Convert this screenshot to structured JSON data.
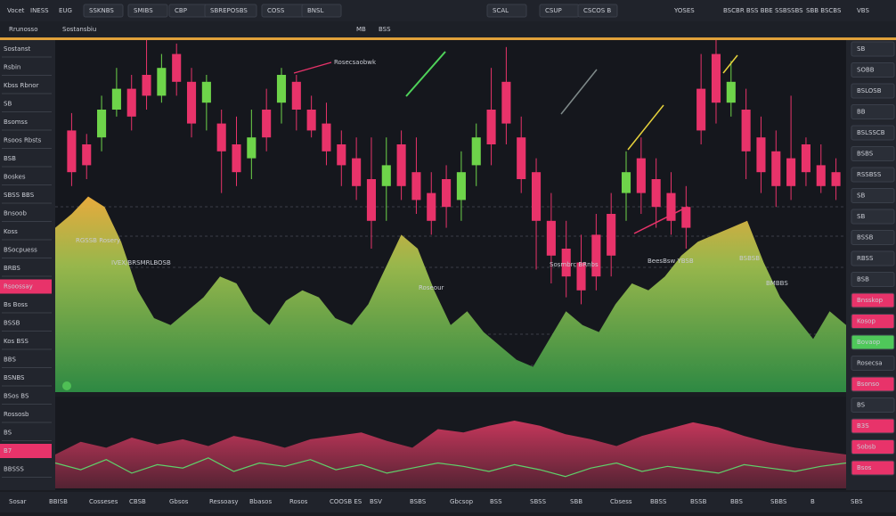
{
  "top_bar": {
    "items": [
      "Vocet",
      "INESS",
      "EUG",
      "SSKNBS",
      "SMIBS",
      "CBP",
      "SBREPOSBS",
      "COSS",
      "BNSL",
      "SCAL",
      "CSUP",
      "CSCOS B",
      "YOSES",
      "BSCBR BSS BBE",
      "SSBSSBS",
      "SBB BSCBS",
      "VBS"
    ]
  },
  "sub_bar": {
    "items": [
      "Rrunosso",
      "Sostansbiu",
      "MB",
      "BSS"
    ]
  },
  "left_panel": {
    "items": [
      "Sostanst",
      "Rsbin",
      "Kbss Rbnor",
      "SB",
      "Bsomss",
      "Rsoos Rbsts",
      "BSB",
      "Boskes",
      "SBSS BBS",
      "Bnsoob",
      "Koss",
      "BSocpuess",
      "BRBS",
      "Rsoossay",
      "Bs Boss",
      "BSSB",
      "Kos BSS",
      "BBS",
      "BSNBS",
      "BSos BS",
      "Rossosb",
      "BS",
      "B7",
      "BBSSS"
    ]
  },
  "right_panel": {
    "items": [
      "SB",
      "SOBB",
      "BSLOSB",
      "BB",
      "BSLSSCB",
      "BSBS",
      "RSSBSS",
      "SB",
      "SB",
      "BSSB",
      "RBSS",
      "BSB",
      "Bnsskop",
      "Kosop",
      "Bovaop",
      "Rosecsa",
      "Bsonso",
      "BS",
      "B3S",
      "Sobsb",
      "Bsos"
    ]
  },
  "main_chart": {
    "labels": [
      "RGSSB Rosery",
      "IVEX/BRSMRLBOSB",
      "Rosecsaobwk",
      "Roseour",
      "Sosmbrc BRnbs",
      "BeesBsw YBSB",
      "BMBBS",
      "BSBSB"
    ],
    "candles": [
      [
        74,
        62,
        79,
        58
      ],
      [
        70,
        64,
        73,
        60
      ],
      [
        72,
        80,
        84,
        68
      ],
      [
        80,
        86,
        92,
        78
      ],
      [
        86,
        78,
        90,
        74
      ],
      [
        90,
        84,
        100,
        80
      ],
      [
        84,
        92,
        96,
        82
      ],
      [
        96,
        88,
        99,
        84
      ],
      [
        88,
        76,
        92,
        72
      ],
      [
        82,
        88,
        90,
        74
      ],
      [
        76,
        68,
        80,
        56
      ],
      [
        70,
        62,
        78,
        58
      ],
      [
        66,
        72,
        80,
        60
      ],
      [
        80,
        72,
        86,
        68
      ],
      [
        82,
        90,
        92,
        76
      ],
      [
        88,
        80,
        90,
        74
      ],
      [
        80,
        74,
        84,
        72
      ],
      [
        76,
        68,
        82,
        64
      ],
      [
        70,
        64,
        74,
        58
      ],
      [
        66,
        58,
        72,
        54
      ],
      [
        60,
        48,
        72,
        40
      ],
      [
        58,
        64,
        72,
        48
      ],
      [
        70,
        58,
        74,
        54
      ],
      [
        62,
        54,
        72,
        50
      ],
      [
        56,
        48,
        62,
        44
      ],
      [
        60,
        52,
        64,
        46
      ],
      [
        54,
        62,
        68,
        48
      ],
      [
        64,
        72,
        76,
        58
      ],
      [
        80,
        70,
        92,
        64
      ],
      [
        88,
        76,
        98,
        70
      ],
      [
        72,
        60,
        78,
        56
      ],
      [
        62,
        48,
        66,
        34
      ],
      [
        48,
        38,
        56,
        30
      ],
      [
        40,
        32,
        48,
        26
      ],
      [
        36,
        28,
        44,
        24
      ],
      [
        44,
        32,
        50,
        28
      ],
      [
        50,
        38,
        56,
        32
      ],
      [
        56,
        62,
        68,
        48
      ],
      [
        66,
        56,
        72,
        50
      ],
      [
        60,
        52,
        66,
        46
      ],
      [
        56,
        48,
        62,
        44
      ],
      [
        52,
        46,
        58,
        40
      ],
      [
        86,
        74,
        96,
        70
      ],
      [
        96,
        82,
        100,
        76
      ],
      [
        82,
        88,
        94,
        78
      ],
      [
        80,
        68,
        86,
        60
      ],
      [
        72,
        62,
        78,
        56
      ],
      [
        68,
        58,
        74,
        52
      ],
      [
        66,
        58,
        84,
        54
      ],
      [
        70,
        62,
        72,
        58
      ],
      [
        64,
        58,
        70,
        56
      ],
      [
        62,
        58,
        66,
        54
      ]
    ],
    "area": [
      46,
      50,
      55,
      52,
      42,
      28,
      20,
      18,
      22,
      26,
      32,
      30,
      22,
      18,
      25,
      28,
      26,
      20,
      18,
      24,
      34,
      44,
      40,
      28,
      18,
      22,
      16,
      12,
      8,
      6,
      14,
      22,
      18,
      16,
      24,
      30,
      28,
      32,
      38,
      42,
      44,
      46,
      48,
      36,
      26,
      20,
      14,
      22,
      18
    ]
  },
  "lower_chart": {
    "area": [
      40,
      55,
      48,
      60,
      52,
      58,
      50,
      62,
      56,
      48,
      58,
      62,
      66,
      56,
      48,
      70,
      66,
      74,
      80,
      74,
      64,
      58,
      50,
      62,
      70,
      78,
      72,
      62,
      54,
      48,
      44,
      40
    ],
    "line": [
      30,
      22,
      34,
      18,
      28,
      24,
      36,
      20,
      30,
      26,
      34,
      22,
      28,
      18,
      24,
      30,
      26,
      20,
      28,
      22,
      14,
      24,
      30,
      20,
      26,
      22,
      18,
      28,
      24,
      20,
      26,
      30
    ]
  },
  "bottom_bar": {
    "items": [
      "Sosar",
      "BBISB",
      "Cosseses",
      "CBSB",
      "Gbsos",
      "Ressoasy",
      "Bbasos",
      "Rosos",
      "COOSB ES",
      "BSV",
      "BSBS",
      "Gbcsop",
      "BSS",
      "SBSS",
      "SBB",
      "Cbsess",
      "BBSS",
      "BSSB",
      "BBS",
      "SBBS",
      "B",
      "SBS"
    ]
  }
}
